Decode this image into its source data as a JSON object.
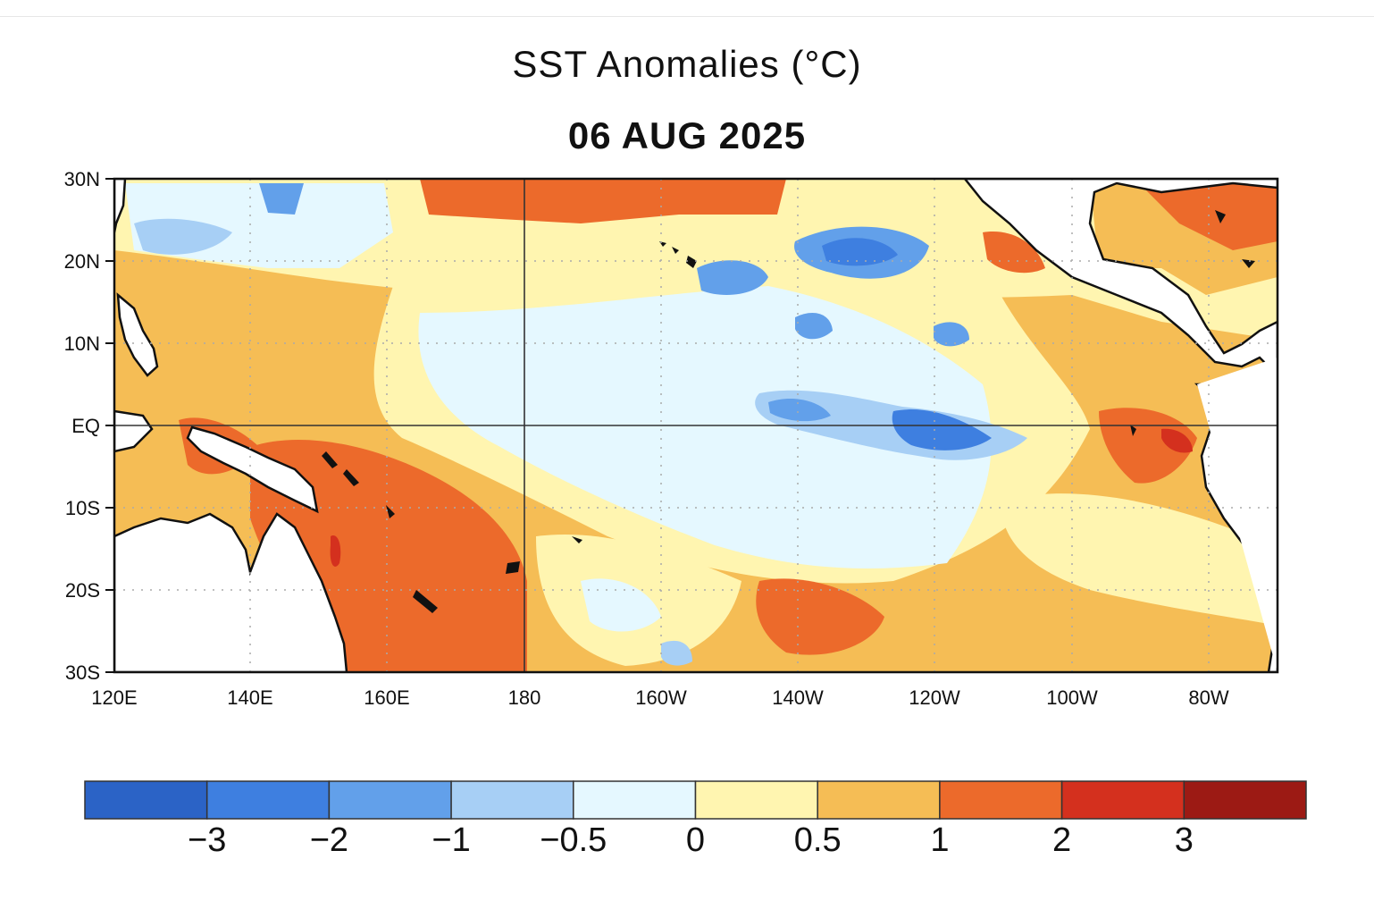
{
  "title": "SST Anomalies (°C)",
  "date": "06 AUG 2025",
  "lat_ticks": [
    "30N",
    "20N",
    "10N",
    "EQ",
    "10S",
    "20S",
    "30S"
  ],
  "lon_ticks": [
    "120E",
    "140E",
    "160E",
    "180",
    "160W",
    "140W",
    "120W",
    "100W",
    "80W"
  ],
  "colorbar": {
    "colors": [
      "#2b63c6",
      "#3e7fe0",
      "#62a0ea",
      "#a7cff5",
      "#e5f8ff",
      "#fff5b0",
      "#f5bd55",
      "#ec6a2b",
      "#d4301e",
      "#9c1a14"
    ],
    "labels": [
      "−3",
      "−2",
      "−1",
      "−0.5",
      "0",
      "0.5",
      "1",
      "2",
      "3"
    ]
  },
  "palette": {
    "land": "#ffffff",
    "coast": "#111111",
    "grid": "#aaaaaa"
  }
}
